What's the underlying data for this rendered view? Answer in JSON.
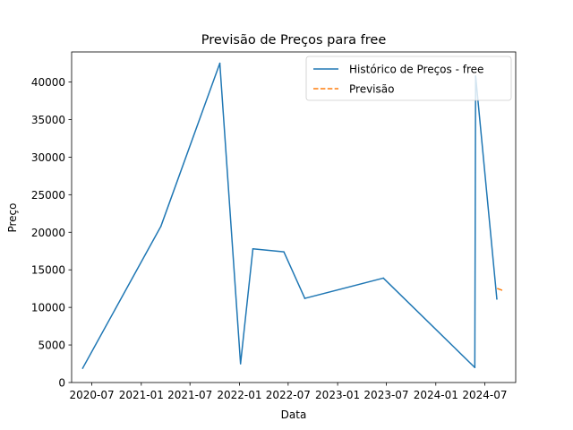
{
  "chart_data": {
    "type": "line",
    "title": "Previsão de Preços para free",
    "xlabel": "Data",
    "ylabel": "Preço",
    "x_axis_type": "date",
    "xlim": [
      "2020-04-17",
      "2024-10-24"
    ],
    "ylim": [
      0,
      44000
    ],
    "x_ticks": [
      "2020-07-01",
      "2021-01-01",
      "2021-07-01",
      "2022-01-01",
      "2022-07-01",
      "2023-01-01",
      "2023-07-01",
      "2024-01-01",
      "2024-07-01"
    ],
    "x_tick_labels": [
      "2020-07",
      "2021-01",
      "2021-07",
      "2022-01",
      "2022-07",
      "2023-01",
      "2023-07",
      "2024-01",
      "2024-07"
    ],
    "y_ticks": [
      0,
      5000,
      10000,
      15000,
      20000,
      25000,
      30000,
      35000,
      40000
    ],
    "y_tick_labels": [
      "0",
      "5000",
      "10000",
      "15000",
      "20000",
      "25000",
      "30000",
      "35000",
      "40000"
    ],
    "grid": false,
    "legend_position": "upper right",
    "series": [
      {
        "name": "Histórico de Preços - free",
        "color": "#1f77b4",
        "style": "solid",
        "points": [
          {
            "x": "2020-05-28",
            "y": 1900
          },
          {
            "x": "2021-03-15",
            "y": 20800
          },
          {
            "x": "2021-10-20",
            "y": 42500
          },
          {
            "x": "2022-01-05",
            "y": 2500
          },
          {
            "x": "2022-02-20",
            "y": 17800
          },
          {
            "x": "2022-06-15",
            "y": 17400
          },
          {
            "x": "2022-09-01",
            "y": 11200
          },
          {
            "x": "2023-06-20",
            "y": 13900
          },
          {
            "x": "2024-05-25",
            "y": 2000
          },
          {
            "x": "2024-05-28",
            "y": 40800
          },
          {
            "x": "2024-08-15",
            "y": 11100
          }
        ]
      },
      {
        "name": "Previsão",
        "color": "#ff7f0e",
        "style": "dashed",
        "points": [
          {
            "x": "2024-08-18",
            "y": 12500
          },
          {
            "x": "2024-09-02",
            "y": 12300
          }
        ]
      }
    ]
  }
}
